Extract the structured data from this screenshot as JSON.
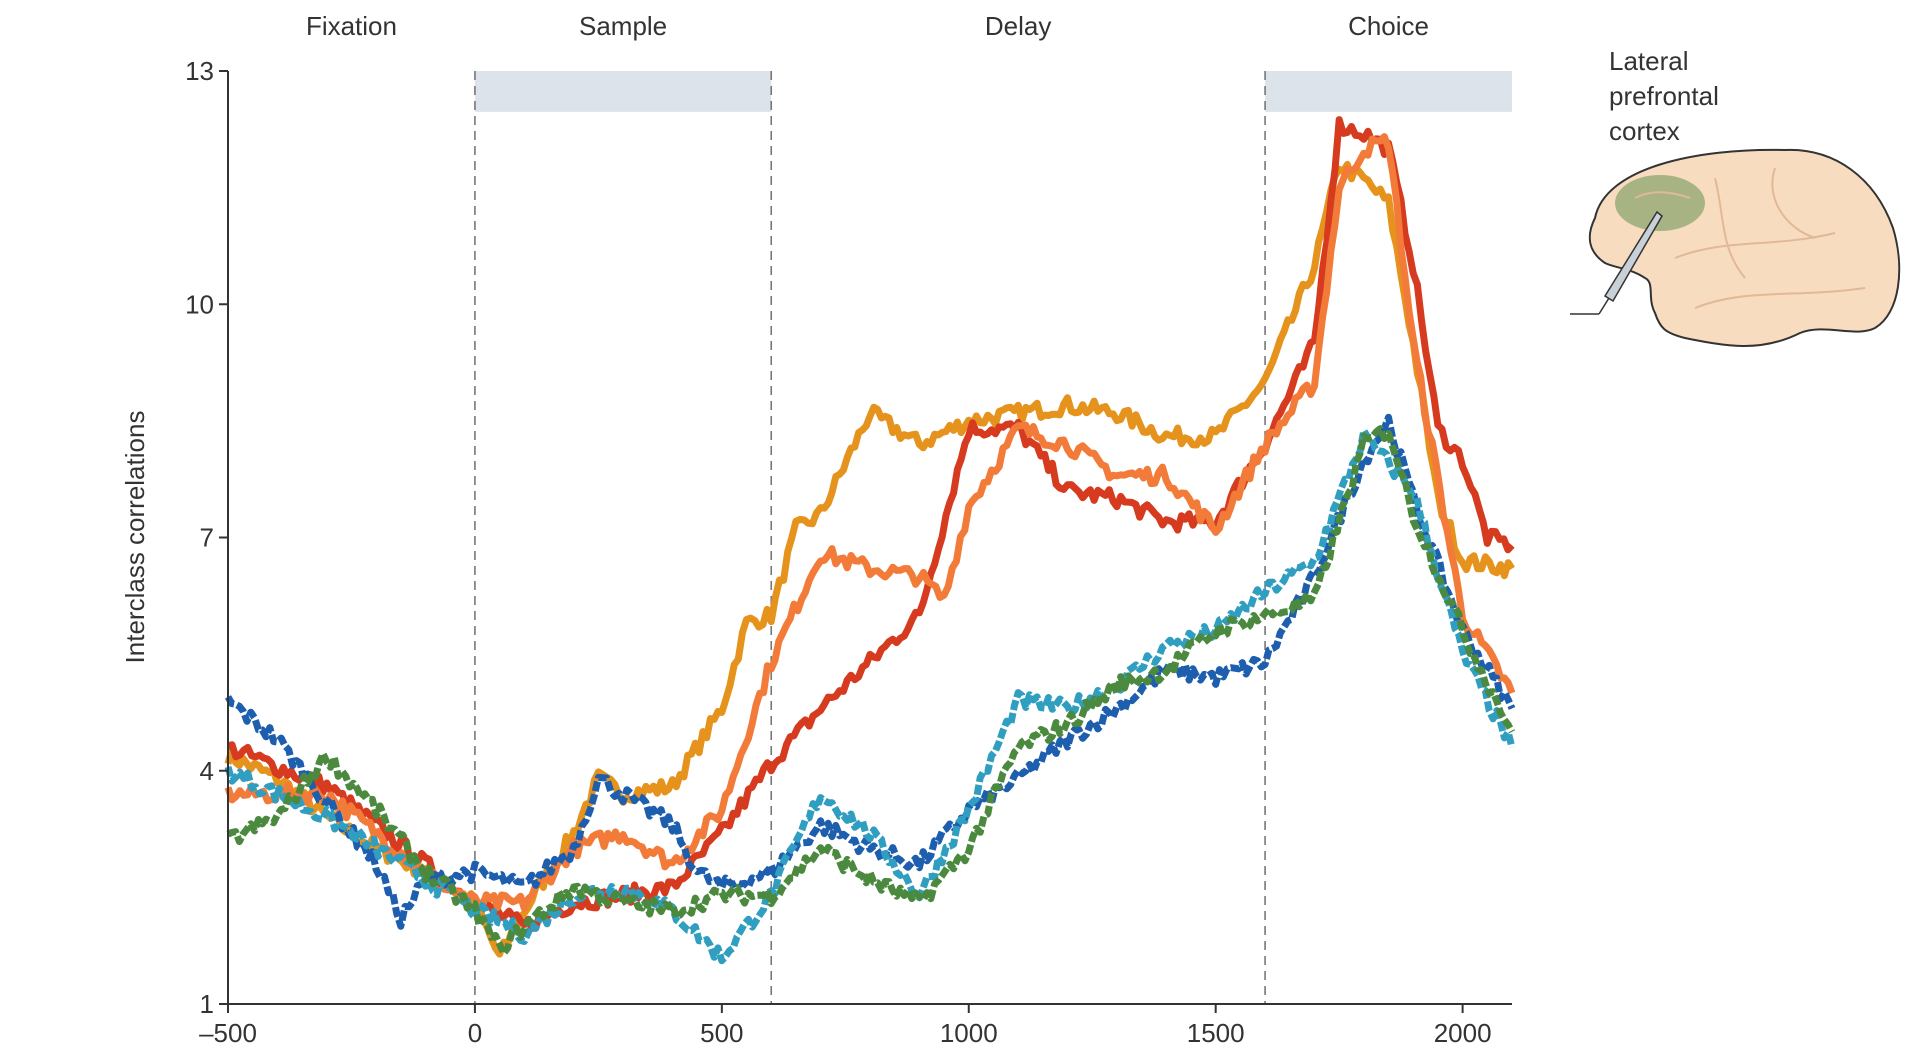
{
  "chart_data": {
    "type": "line",
    "title": "",
    "xlabel": "",
    "ylabel": "Interclass correlations",
    "xlim": [
      -500,
      2100
    ],
    "ylim": [
      1,
      13
    ],
    "xticks": [
      -500,
      0,
      500,
      1000,
      1500,
      2000
    ],
    "yticks": [
      1,
      4,
      7,
      10,
      13
    ],
    "epochs": [
      {
        "label": "Fixation",
        "center": -250
      },
      {
        "label": "Sample",
        "center": 300
      },
      {
        "label": "Delay",
        "center": 1100
      },
      {
        "label": "Choice",
        "center": 1850
      }
    ],
    "shaded_periods": [
      [
        0,
        600
      ],
      [
        1600,
        2100
      ]
    ],
    "event_lines": [
      0,
      600,
      1600
    ],
    "grid": false,
    "series": [
      {
        "name": "dark orange",
        "color": "#e5931c",
        "dashed": false,
        "points": [
          [
            -500,
            4.2
          ],
          [
            -400,
            3.9
          ],
          [
            -300,
            3.4
          ],
          [
            -200,
            3.0
          ],
          [
            -100,
            2.7
          ],
          [
            0,
            2.3
          ],
          [
            50,
            1.6
          ],
          [
            100,
            2.2
          ],
          [
            200,
            3.2
          ],
          [
            250,
            3.9
          ],
          [
            300,
            3.7
          ],
          [
            400,
            3.8
          ],
          [
            500,
            4.8
          ],
          [
            550,
            5.9
          ],
          [
            600,
            6.0
          ],
          [
            650,
            7.1
          ],
          [
            700,
            7.3
          ],
          [
            800,
            8.6
          ],
          [
            900,
            8.2
          ],
          [
            1000,
            8.5
          ],
          [
            1100,
            8.6
          ],
          [
            1200,
            8.7
          ],
          [
            1300,
            8.6
          ],
          [
            1400,
            8.3
          ],
          [
            1500,
            8.3
          ],
          [
            1600,
            9.0
          ],
          [
            1700,
            10.5
          ],
          [
            1750,
            11.8
          ],
          [
            1800,
            11.6
          ],
          [
            1850,
            11.3
          ],
          [
            1900,
            9.5
          ],
          [
            1950,
            7.5
          ],
          [
            2000,
            6.7
          ],
          [
            2100,
            6.6
          ]
        ]
      },
      {
        "name": "red",
        "color": "#d63b1f",
        "dashed": false,
        "points": [
          [
            -500,
            4.3
          ],
          [
            -300,
            3.8
          ],
          [
            -100,
            2.8
          ],
          [
            0,
            2.3
          ],
          [
            100,
            2.0
          ],
          [
            200,
            2.3
          ],
          [
            300,
            2.4
          ],
          [
            400,
            2.5
          ],
          [
            500,
            3.2
          ],
          [
            600,
            4.1
          ],
          [
            700,
            4.8
          ],
          [
            800,
            5.4
          ],
          [
            900,
            6.0
          ],
          [
            1000,
            8.4
          ],
          [
            1100,
            8.4
          ],
          [
            1200,
            7.6
          ],
          [
            1300,
            7.5
          ],
          [
            1400,
            7.2
          ],
          [
            1500,
            7.2
          ],
          [
            1600,
            8.2
          ],
          [
            1700,
            9.5
          ],
          [
            1750,
            12.3
          ],
          [
            1800,
            12.2
          ],
          [
            1850,
            12.0
          ],
          [
            1900,
            10.5
          ],
          [
            1950,
            8.4
          ],
          [
            2000,
            8.0
          ],
          [
            2050,
            7.0
          ],
          [
            2100,
            6.9
          ]
        ]
      },
      {
        "name": "light orange",
        "color": "#f27b3a",
        "dashed": false,
        "points": [
          [
            -500,
            3.7
          ],
          [
            -300,
            3.7
          ],
          [
            -100,
            2.7
          ],
          [
            0,
            2.3
          ],
          [
            100,
            2.3
          ],
          [
            200,
            3.0
          ],
          [
            300,
            3.2
          ],
          [
            400,
            2.8
          ],
          [
            500,
            3.5
          ],
          [
            600,
            5.4
          ],
          [
            700,
            6.8
          ],
          [
            800,
            6.6
          ],
          [
            900,
            6.5
          ],
          [
            950,
            6.2
          ],
          [
            1000,
            7.4
          ],
          [
            1100,
            8.4
          ],
          [
            1200,
            8.2
          ],
          [
            1300,
            7.8
          ],
          [
            1400,
            7.8
          ],
          [
            1500,
            7.1
          ],
          [
            1600,
            8.2
          ],
          [
            1700,
            9.0
          ],
          [
            1750,
            11.5
          ],
          [
            1800,
            12.0
          ],
          [
            1850,
            12.1
          ],
          [
            1900,
            9.5
          ],
          [
            2000,
            6.0
          ],
          [
            2100,
            5.0
          ]
        ]
      },
      {
        "name": "dark blue",
        "color": "#1d5eae",
        "dashed": true,
        "points": [
          [
            -500,
            4.9
          ],
          [
            -400,
            4.4
          ],
          [
            -300,
            3.6
          ],
          [
            -200,
            2.8
          ],
          [
            -150,
            2.1
          ],
          [
            -100,
            2.6
          ],
          [
            0,
            2.7
          ],
          [
            100,
            2.5
          ],
          [
            200,
            3.0
          ],
          [
            250,
            3.9
          ],
          [
            300,
            3.7
          ],
          [
            400,
            3.3
          ],
          [
            450,
            2.7
          ],
          [
            500,
            2.5
          ],
          [
            600,
            2.7
          ],
          [
            700,
            3.3
          ],
          [
            800,
            3.0
          ],
          [
            900,
            2.8
          ],
          [
            1000,
            3.5
          ],
          [
            1100,
            3.9
          ],
          [
            1200,
            4.4
          ],
          [
            1300,
            4.8
          ],
          [
            1400,
            5.3
          ],
          [
            1500,
            5.2
          ],
          [
            1600,
            5.4
          ],
          [
            1700,
            6.5
          ],
          [
            1800,
            8.0
          ],
          [
            1850,
            8.5
          ],
          [
            1900,
            7.5
          ],
          [
            2000,
            5.8
          ],
          [
            2100,
            4.8
          ]
        ]
      },
      {
        "name": "teal",
        "color": "#2f9ec0",
        "dashed": true,
        "points": [
          [
            -500,
            4.0
          ],
          [
            -300,
            3.4
          ],
          [
            -100,
            2.6
          ],
          [
            0,
            2.2
          ],
          [
            100,
            1.9
          ],
          [
            200,
            2.4
          ],
          [
            300,
            2.5
          ],
          [
            400,
            2.2
          ],
          [
            500,
            1.6
          ],
          [
            600,
            2.4
          ],
          [
            700,
            3.7
          ],
          [
            800,
            3.2
          ],
          [
            900,
            2.4
          ],
          [
            1000,
            3.5
          ],
          [
            1100,
            4.9
          ],
          [
            1200,
            4.8
          ],
          [
            1300,
            5.1
          ],
          [
            1400,
            5.6
          ],
          [
            1500,
            5.8
          ],
          [
            1600,
            6.3
          ],
          [
            1700,
            6.7
          ],
          [
            1800,
            8.3
          ],
          [
            1900,
            7.6
          ],
          [
            2000,
            5.5
          ],
          [
            2100,
            4.3
          ]
        ]
      },
      {
        "name": "green",
        "color": "#4b8a3e",
        "dashed": true,
        "points": [
          [
            -500,
            3.1
          ],
          [
            -400,
            3.4
          ],
          [
            -300,
            4.2
          ],
          [
            -200,
            3.5
          ],
          [
            -100,
            2.7
          ],
          [
            0,
            2.2
          ],
          [
            50,
            1.7
          ],
          [
            100,
            2.0
          ],
          [
            200,
            2.5
          ],
          [
            300,
            2.3
          ],
          [
            400,
            2.2
          ],
          [
            500,
            2.4
          ],
          [
            600,
            2.4
          ],
          [
            700,
            3.0
          ],
          [
            800,
            2.6
          ],
          [
            900,
            2.3
          ],
          [
            1000,
            3.0
          ],
          [
            1100,
            4.3
          ],
          [
            1200,
            4.6
          ],
          [
            1300,
            5.1
          ],
          [
            1400,
            5.3
          ],
          [
            1500,
            5.8
          ],
          [
            1600,
            6.0
          ],
          [
            1700,
            6.2
          ],
          [
            1800,
            8.2
          ],
          [
            1850,
            8.4
          ],
          [
            1900,
            7.3
          ],
          [
            2000,
            5.8
          ],
          [
            2100,
            4.5
          ]
        ]
      }
    ]
  },
  "illustration": {
    "label_lines": [
      "Lateral",
      "prefrontal",
      "cortex"
    ],
    "colors": {
      "brain": "#f8dcc0",
      "region": "#9aab78",
      "outline": "#333333"
    }
  }
}
